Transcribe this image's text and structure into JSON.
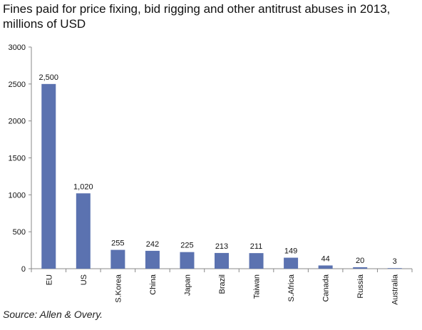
{
  "title": "Fines paid for price fixing, bid rigging and other antitrust abuses in 2013, millions of USD",
  "source": "Source: Allen & Overy.",
  "chart_data": {
    "type": "bar",
    "title": "Fines paid for price fixing, bid rigging and other antitrust abuses in 2013, millions of USD",
    "categories": [
      "EU",
      "US",
      "S.Korea",
      "China",
      "Japan",
      "Brazil",
      "Taiwan",
      "S.Africa",
      "Canada",
      "Russia",
      "Australia"
    ],
    "values": [
      2500,
      1020,
      255,
      242,
      225,
      213,
      211,
      149,
      44,
      20,
      3
    ],
    "data_labels": [
      "2,500",
      "1,020",
      "255",
      "242",
      "225",
      "213",
      "211",
      "149",
      "44",
      "20",
      "3"
    ],
    "yticks": [
      "0",
      "500",
      "1000",
      "1500",
      "2000",
      "2500",
      "3000"
    ],
    "ylim": [
      0,
      3000
    ],
    "xlabel": "",
    "ylabel": "",
    "grid": false,
    "bar_color": "#5B72B0"
  }
}
